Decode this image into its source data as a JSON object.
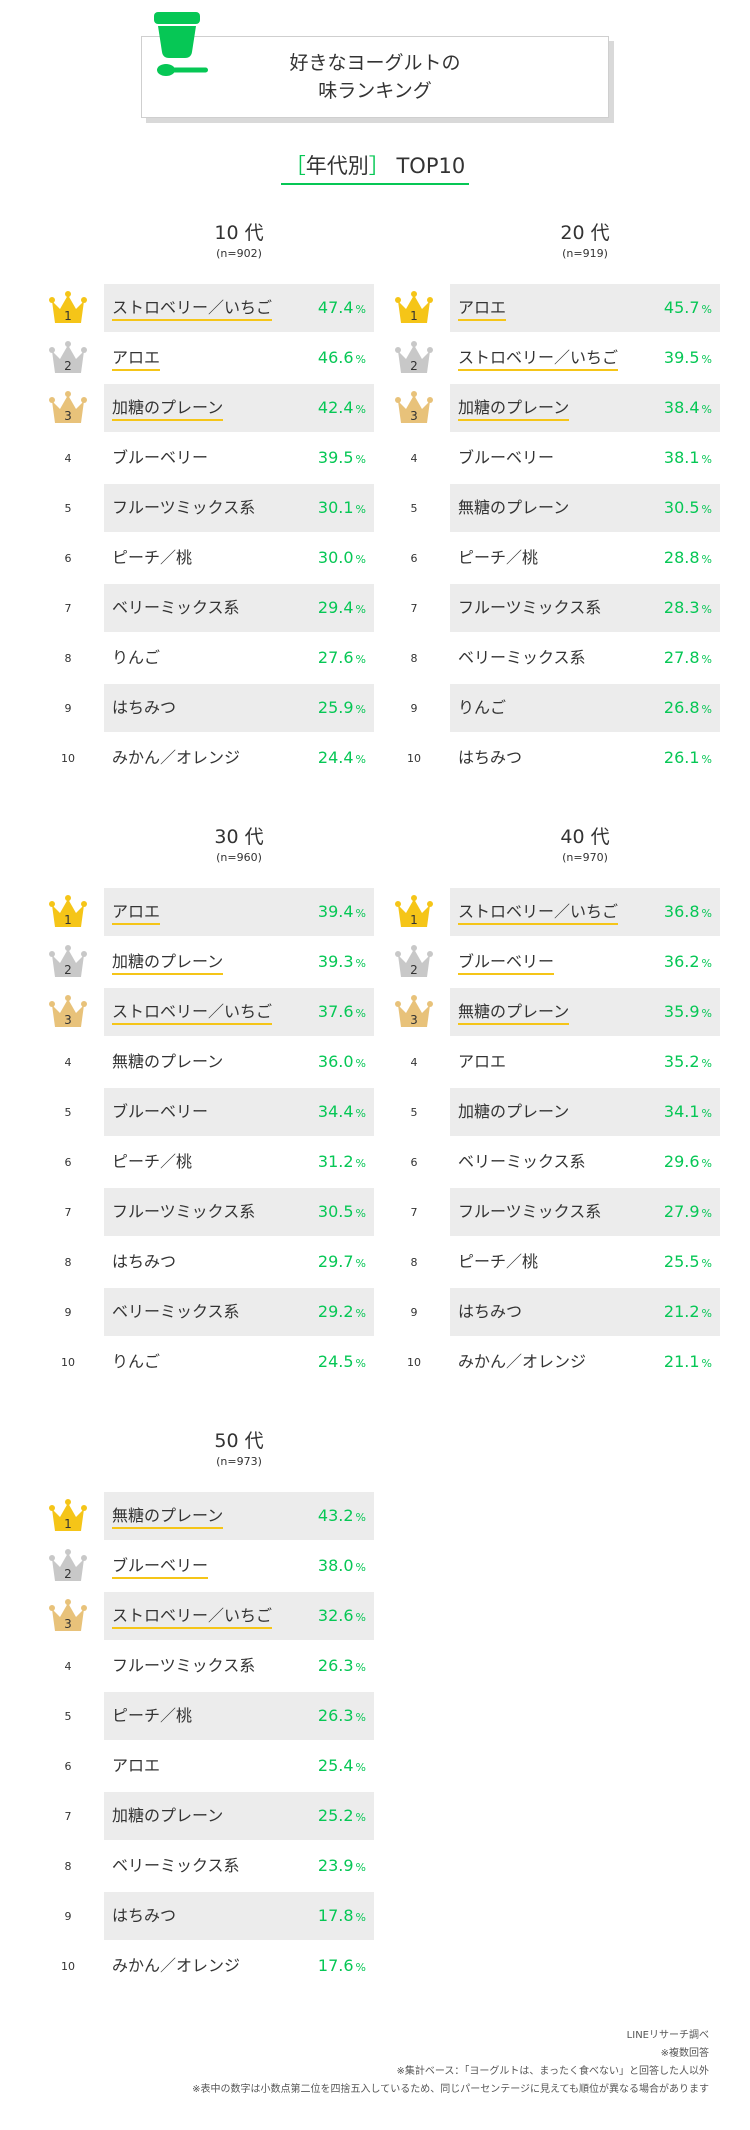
{
  "header": {
    "title_line1": "好きなヨーグルトの",
    "title_line2": "味ランキング",
    "logo_icon": "yogurt-cup-spoon-icon",
    "accent_color": "#06c755"
  },
  "subtitle": {
    "open": "［",
    "text": "年代別",
    "close": "］",
    "suffix": " TOP10"
  },
  "chart_data": [
    {
      "type": "table",
      "title": "10 代",
      "n": "(n=902)",
      "ranks": [
        "1",
        "2",
        "3",
        "4",
        "5",
        "6",
        "7",
        "8",
        "9",
        "10"
      ],
      "categories": [
        "ストロベリー／いちご",
        "アロエ",
        "加糖のプレーン",
        "ブルーベリー",
        "フルーツミックス系",
        "ピーチ／桃",
        "ベリーミックス系",
        "りんご",
        "はちみつ",
        "みかん／オレンジ"
      ],
      "values": [
        47.4,
        46.6,
        42.4,
        39.5,
        30.1,
        30.0,
        29.4,
        27.6,
        25.9,
        24.4
      ],
      "unit": "%"
    },
    {
      "type": "table",
      "title": "20 代",
      "n": "(n=919)",
      "ranks": [
        "1",
        "2",
        "3",
        "4",
        "5",
        "6",
        "7",
        "8",
        "9",
        "10"
      ],
      "categories": [
        "アロエ",
        "ストロベリー／いちご",
        "加糖のプレーン",
        "ブルーベリー",
        "無糖のプレーン",
        "ピーチ／桃",
        "フルーツミックス系",
        "ベリーミックス系",
        "りんご",
        "はちみつ"
      ],
      "values": [
        45.7,
        39.5,
        38.4,
        38.1,
        30.5,
        28.8,
        28.3,
        27.8,
        26.8,
        26.1
      ],
      "unit": "%"
    },
    {
      "type": "table",
      "title": "30 代",
      "n": "(n=960)",
      "ranks": [
        "1",
        "2",
        "3",
        "4",
        "5",
        "6",
        "7",
        "8",
        "9",
        "10"
      ],
      "categories": [
        "アロエ",
        "加糖のプレーン",
        "ストロベリー／いちご",
        "無糖のプレーン",
        "ブルーベリー",
        "ピーチ／桃",
        "フルーツミックス系",
        "はちみつ",
        "ベリーミックス系",
        "りんご"
      ],
      "values": [
        39.4,
        39.3,
        37.6,
        36.0,
        34.4,
        31.2,
        30.5,
        29.7,
        29.2,
        24.5
      ],
      "unit": "%"
    },
    {
      "type": "table",
      "title": "40 代",
      "n": "(n=970)",
      "ranks": [
        "1",
        "2",
        "3",
        "4",
        "5",
        "6",
        "7",
        "8",
        "9",
        "10"
      ],
      "categories": [
        "ストロベリー／いちご",
        "ブルーベリー",
        "無糖のプレーン",
        "アロエ",
        "加糖のプレーン",
        "ベリーミックス系",
        "フルーツミックス系",
        "ピーチ／桃",
        "はちみつ",
        "みかん／オレンジ"
      ],
      "values": [
        36.8,
        36.2,
        35.9,
        35.2,
        34.1,
        29.6,
        27.9,
        25.5,
        21.2,
        21.1
      ],
      "unit": "%"
    },
    {
      "type": "table",
      "title": "50 代",
      "n": "(n=973)",
      "ranks": [
        "1",
        "2",
        "3",
        "4",
        "5",
        "6",
        "7",
        "8",
        "9",
        "10"
      ],
      "categories": [
        "無糖のプレーン",
        "ブルーベリー",
        "ストロベリー／いちご",
        "フルーツミックス系",
        "ピーチ／桃",
        "アロエ",
        "加糖のプレーン",
        "ベリーミックス系",
        "はちみつ",
        "みかん／オレンジ"
      ],
      "values": [
        43.2,
        38.0,
        32.6,
        26.3,
        26.3,
        25.4,
        25.2,
        23.9,
        17.8,
        17.6
      ],
      "unit": "%"
    }
  ],
  "colors": {
    "gold": "#f5c518",
    "silver": "#c8c8c8",
    "bronze": "#e8c27a",
    "row_shade": "#ececec",
    "percent": "#06c755"
  },
  "footnotes": [
    "LINEリサーチ調べ",
    "※複数回答",
    "※集計ベース：「ヨーグルトは、まったく食べない」と回答した人以外",
    "※表中の数字は小数点第二位を四捨五入しているため、同じパーセンテージに見えても順位が異なる場合があります"
  ]
}
